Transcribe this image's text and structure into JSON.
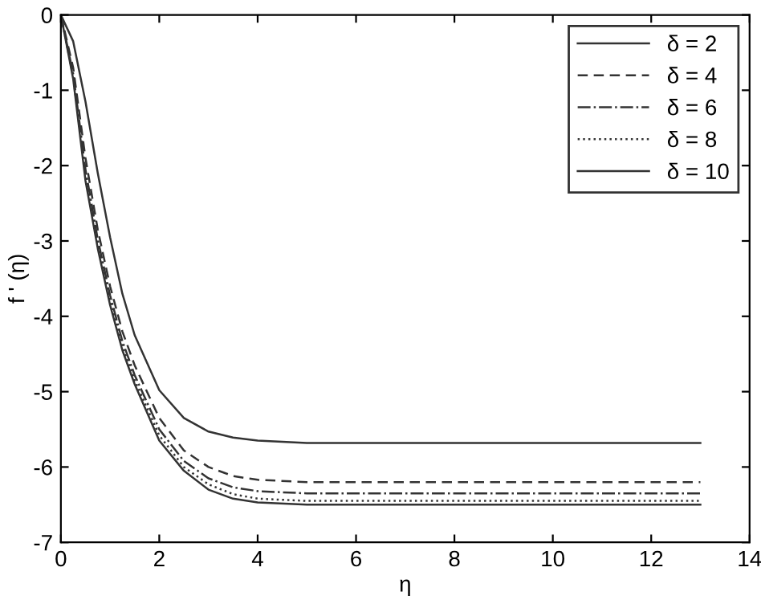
{
  "chart_data": {
    "type": "line",
    "xlabel": "η",
    "ylabel": "f ' (η)",
    "x": [
      0,
      0.25,
      0.5,
      0.75,
      1,
      1.25,
      1.5,
      2,
      2.5,
      3,
      3.5,
      4,
      5,
      6,
      8,
      10,
      13
    ],
    "series": [
      {
        "name": "δ = 2",
        "color": "#333333",
        "line_style": "solid",
        "values": [
          0,
          -0.35,
          -1.15,
          -2.1,
          -2.95,
          -3.7,
          -4.25,
          -4.98,
          -5.35,
          -5.53,
          -5.61,
          -5.65,
          -5.68,
          -5.68,
          -5.68,
          -5.68,
          -5.68
        ]
      },
      {
        "name": "δ = 4",
        "color": "#333333",
        "line_style": "dashed",
        "values": [
          0,
          -0.7,
          -1.9,
          -2.85,
          -3.6,
          -4.2,
          -4.65,
          -5.35,
          -5.78,
          -6.0,
          -6.12,
          -6.17,
          -6.2,
          -6.2,
          -6.2,
          -6.2,
          -6.2
        ]
      },
      {
        "name": "δ = 6",
        "color": "#333333",
        "line_style": "dashdot",
        "values": [
          0,
          -0.78,
          -2.05,
          -2.98,
          -3.72,
          -4.33,
          -4.78,
          -5.5,
          -5.92,
          -6.15,
          -6.27,
          -6.32,
          -6.35,
          -6.35,
          -6.35,
          -6.35,
          -6.35
        ]
      },
      {
        "name": "δ = 8",
        "color": "#333333",
        "line_style": "dotted",
        "values": [
          0,
          -0.82,
          -2.12,
          -3.05,
          -3.8,
          -4.4,
          -4.85,
          -5.58,
          -6.0,
          -6.23,
          -6.36,
          -6.42,
          -6.45,
          -6.45,
          -6.45,
          -6.45,
          -6.45
        ]
      },
      {
        "name": "δ = 10",
        "color": "#333333",
        "line_style": "solid",
        "values": [
          0,
          -0.85,
          -2.2,
          -3.1,
          -3.85,
          -4.45,
          -4.9,
          -5.65,
          -6.05,
          -6.3,
          -6.42,
          -6.47,
          -6.5,
          -6.5,
          -6.5,
          -6.5,
          -6.5
        ]
      }
    ],
    "xlim": [
      0,
      14
    ],
    "xticks": [
      0,
      2,
      4,
      6,
      8,
      10,
      12,
      14
    ],
    "ylim": [
      -7,
      0
    ],
    "yticks": [
      -7,
      -6,
      -5,
      -4,
      -3,
      -2,
      -1,
      0
    ],
    "grid": false,
    "legend": "top right",
    "marker": "none"
  }
}
